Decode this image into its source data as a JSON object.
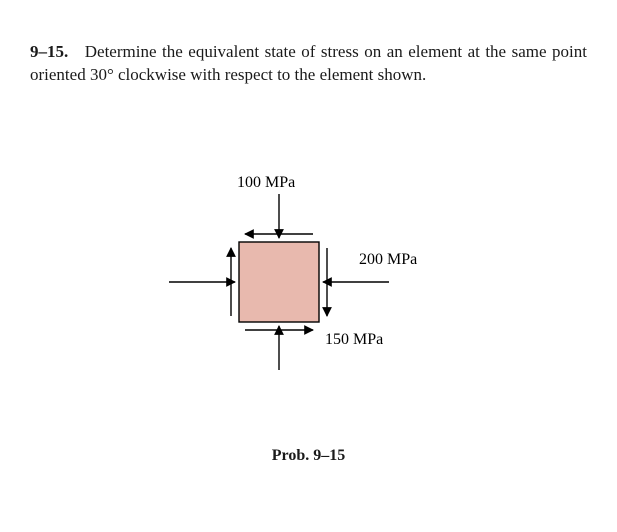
{
  "problem": {
    "number": "9–15.",
    "statement": "Determine the equivalent state of stress on an element at the same point oriented 30° clockwise with respect to the element shown."
  },
  "figure": {
    "labels": {
      "top": "100 MPa",
      "right": "200 MPa",
      "shear": "150 MPa"
    },
    "caption": "Prob. 9–15",
    "style": {
      "element_fill": "#e8b9ae",
      "element_stroke": "#000000",
      "arrow_color": "#000000",
      "element_size": 80,
      "stroke_width": 1.4,
      "font_size": 16,
      "font_family": "Times New Roman"
    }
  }
}
